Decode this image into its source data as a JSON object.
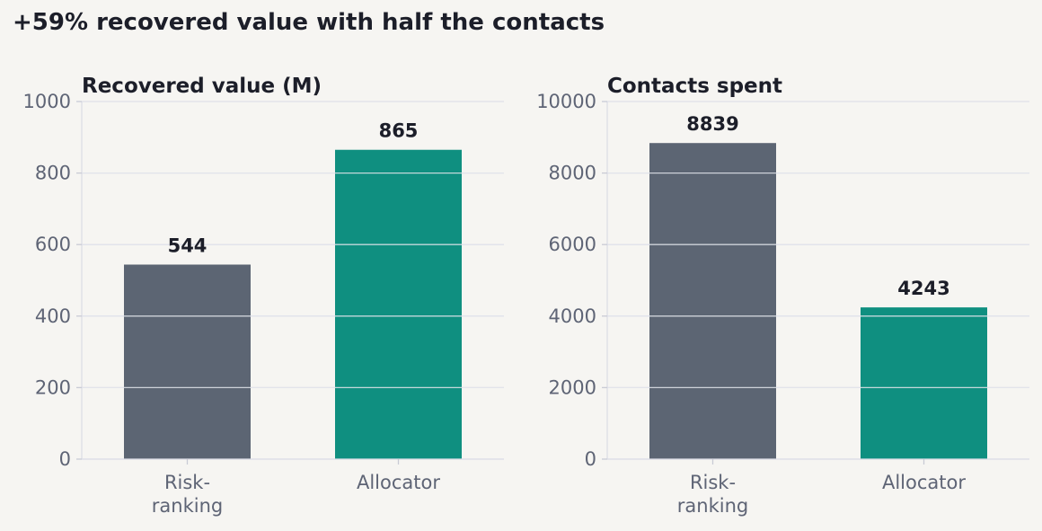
{
  "figure": {
    "suptitle": "+59% recovered value with half the contacts"
  },
  "colors": {
    "background": "#f6f5f2",
    "baseline_bar": "#5c6573",
    "allocator_bar": "#0f8f80",
    "text_dark": "#1c1e29",
    "text_muted": "#5e6475",
    "grid": "#dfe0e8"
  },
  "chart_data": [
    {
      "type": "bar",
      "title": "Recovered value (M)",
      "categories": [
        [
          "Risk-",
          "ranking"
        ],
        [
          "Allocator"
        ]
      ],
      "values": [
        544,
        865
      ],
      "data_labels": [
        "544",
        "865"
      ],
      "bar_colors": [
        "#5c6573",
        "#0f8f80"
      ],
      "ylim": [
        0,
        1000
      ],
      "yticks": [
        0,
        200,
        400,
        600,
        800,
        1000
      ],
      "ytick_labels": [
        "0",
        "200",
        "400",
        "600",
        "800",
        "1000"
      ],
      "xlabel": "",
      "ylabel": "",
      "grid": "y"
    },
    {
      "type": "bar",
      "title": "Contacts spent",
      "categories": [
        [
          "Risk-",
          "ranking"
        ],
        [
          "Allocator"
        ]
      ],
      "values": [
        8839,
        4243
      ],
      "data_labels": [
        "8839",
        "4243"
      ],
      "bar_colors": [
        "#5c6573",
        "#0f8f80"
      ],
      "ylim": [
        0,
        10000
      ],
      "yticks": [
        0,
        2000,
        4000,
        6000,
        8000,
        10000
      ],
      "ytick_labels": [
        "0",
        "2000",
        "4000",
        "6000",
        "8000",
        "10000"
      ],
      "xlabel": "",
      "ylabel": "",
      "grid": "y"
    }
  ]
}
